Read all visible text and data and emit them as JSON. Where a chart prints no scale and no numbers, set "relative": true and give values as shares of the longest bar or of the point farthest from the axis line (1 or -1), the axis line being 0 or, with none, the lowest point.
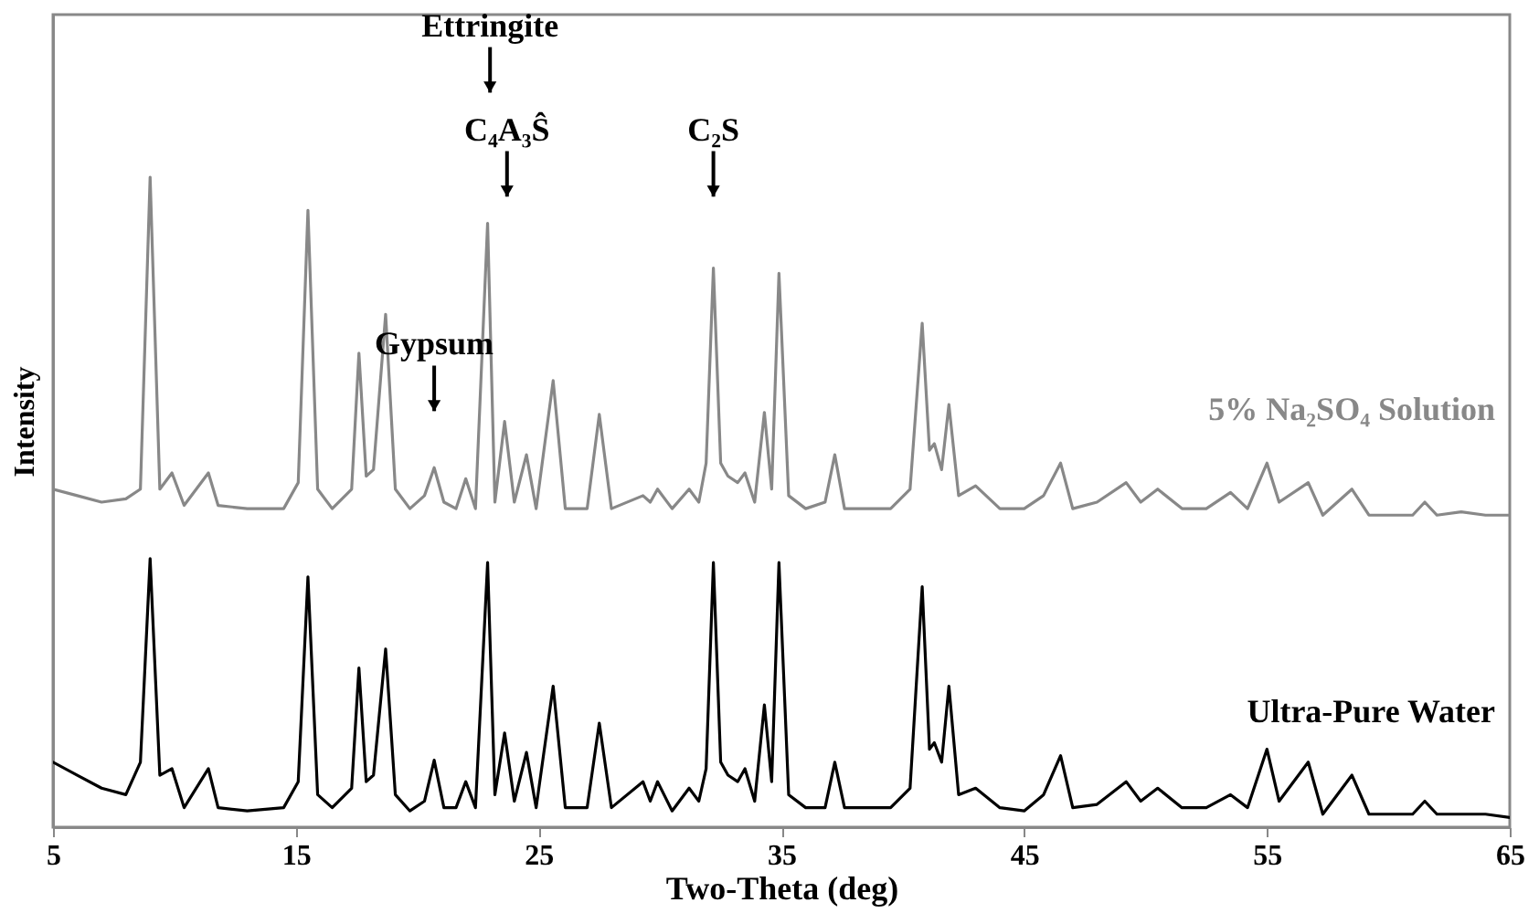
{
  "chart_data": {
    "type": "line",
    "xlabel": "Two-Theta (deg)",
    "ylabel": "Intensity",
    "relative": true,
    "legend": false,
    "grid": false,
    "xlim": [
      5,
      65
    ],
    "xticks": [
      5,
      15,
      25,
      35,
      45,
      55,
      65
    ],
    "x": [
      5,
      6,
      7,
      8,
      8.6,
      9,
      9.4,
      9.9,
      10.4,
      11.4,
      11.8,
      13,
      14.5,
      15.1,
      15.5,
      15.9,
      16.5,
      17.3,
      17.6,
      17.9,
      18.2,
      18.7,
      19.1,
      19.7,
      20.3,
      20.7,
      21.1,
      21.6,
      22,
      22.4,
      22.9,
      23.2,
      23.6,
      24,
      24.5,
      24.9,
      25.6,
      26.1,
      27,
      27.5,
      28,
      29.3,
      29.6,
      29.9,
      30.5,
      31.2,
      31.6,
      31.9,
      32.2,
      32.5,
      32.8,
      33.2,
      33.5,
      33.9,
      34.3,
      34.6,
      34.9,
      35.3,
      36,
      36.8,
      37.2,
      37.6,
      38.5,
      39.5,
      40.3,
      40.8,
      41.1,
      41.3,
      41.6,
      41.9,
      42.3,
      43,
      44,
      45,
      45.8,
      46.5,
      47,
      48,
      49.2,
      49.8,
      50.5,
      51.5,
      52.5,
      53.5,
      54.2,
      55,
      55.5,
      56.7,
      57.3,
      58.5,
      59.2,
      61,
      61.5,
      62,
      63,
      64,
      65
    ],
    "series": [
      {
        "name": "5% Na₂SO₄ Solution",
        "color": "#888888",
        "values": [
          0.52,
          0.51,
          0.5,
          0.505,
          0.52,
          1.0,
          0.52,
          0.545,
          0.495,
          0.545,
          0.495,
          0.49,
          0.49,
          0.53,
          0.949,
          0.52,
          0.49,
          0.52,
          0.729,
          0.54,
          0.55,
          0.789,
          0.52,
          0.49,
          0.51,
          0.553,
          0.5,
          0.49,
          0.536,
          0.49,
          0.929,
          0.5,
          0.624,
          0.5,
          0.573,
          0.49,
          0.687,
          0.49,
          0.49,
          0.635,
          0.49,
          0.51,
          0.5,
          0.52,
          0.49,
          0.52,
          0.5,
          0.56,
          0.86,
          0.56,
          0.54,
          0.53,
          0.545,
          0.5,
          0.638,
          0.52,
          0.852,
          0.51,
          0.49,
          0.5,
          0.573,
          0.49,
          0.49,
          0.49,
          0.52,
          0.775,
          0.58,
          0.59,
          0.55,
          0.65,
          0.51,
          0.525,
          0.49,
          0.49,
          0.51,
          0.56,
          0.49,
          0.5,
          0.53,
          0.5,
          0.52,
          0.49,
          0.49,
          0.515,
          0.49,
          0.56,
          0.5,
          0.53,
          0.48,
          0.52,
          0.48,
          0.48,
          0.5,
          0.48,
          0.485,
          0.48,
          0.48
        ]
      },
      {
        "name": "Ultra-Pure Water",
        "color": "#000000",
        "values": [
          0.1,
          0.08,
          0.06,
          0.05,
          0.1,
          0.413,
          0.08,
          0.09,
          0.03,
          0.09,
          0.03,
          0.025,
          0.03,
          0.07,
          0.385,
          0.05,
          0.03,
          0.06,
          0.245,
          0.07,
          0.08,
          0.274,
          0.05,
          0.025,
          0.04,
          0.103,
          0.03,
          0.03,
          0.07,
          0.03,
          0.407,
          0.05,
          0.145,
          0.04,
          0.115,
          0.03,
          0.217,
          0.03,
          0.03,
          0.16,
          0.03,
          0.07,
          0.04,
          0.07,
          0.025,
          0.06,
          0.04,
          0.09,
          0.407,
          0.1,
          0.08,
          0.07,
          0.09,
          0.04,
          0.188,
          0.07,
          0.407,
          0.05,
          0.03,
          0.03,
          0.1,
          0.03,
          0.03,
          0.03,
          0.06,
          0.37,
          0.12,
          0.13,
          0.1,
          0.217,
          0.05,
          0.06,
          0.03,
          0.025,
          0.05,
          0.11,
          0.03,
          0.035,
          0.07,
          0.04,
          0.06,
          0.03,
          0.03,
          0.05,
          0.03,
          0.12,
          0.04,
          0.1,
          0.02,
          0.08,
          0.02,
          0.02,
          0.04,
          0.02,
          0.02,
          0.02,
          0.015
        ]
      }
    ],
    "annotations": [
      "Ettringite",
      "C₄A₃Ŝ",
      "C₂S",
      "Gypsum"
    ]
  }
}
